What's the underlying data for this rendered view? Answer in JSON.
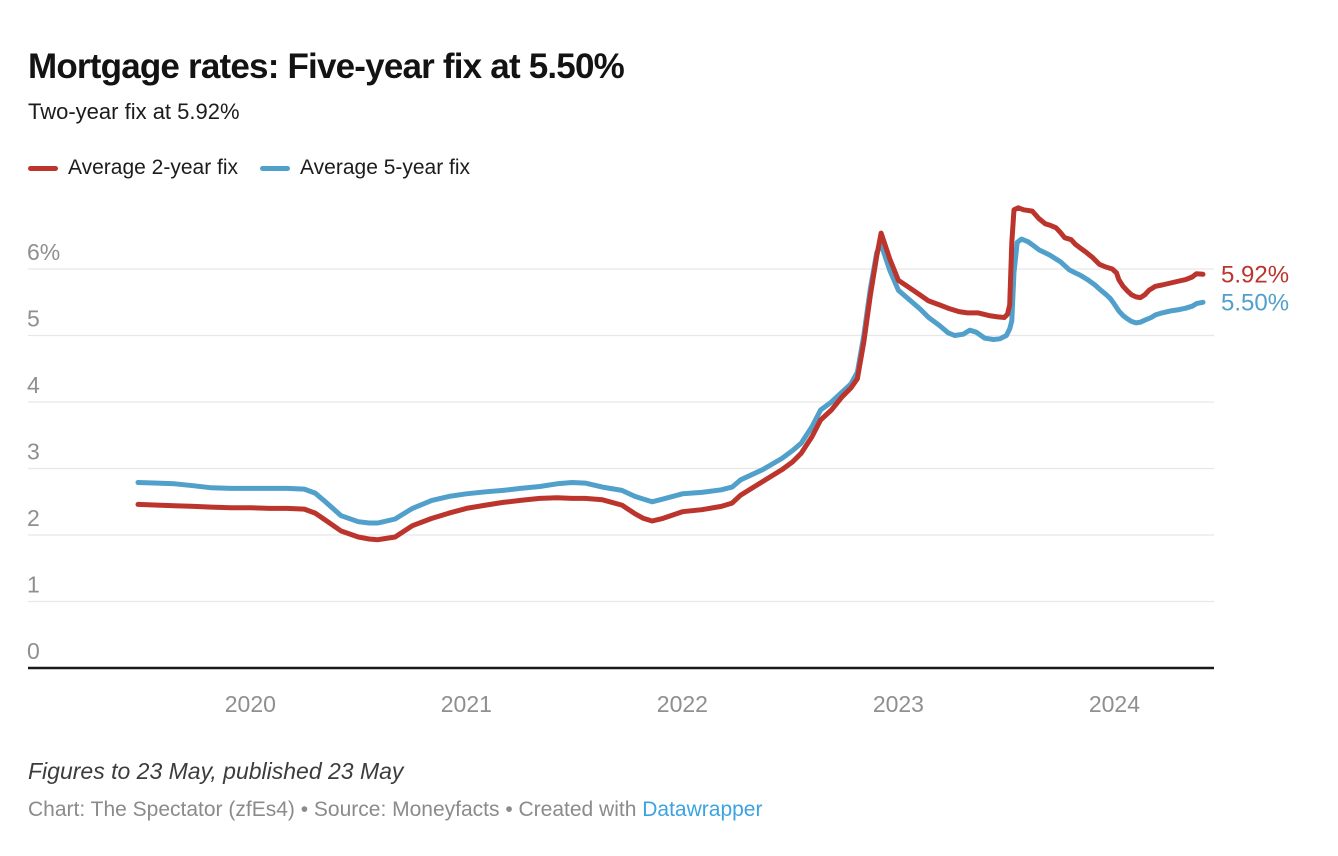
{
  "header": {
    "title": "Mortgage rates: Five-year fix at 5.50%",
    "subtitle": "Two-year fix at 5.92%"
  },
  "legend": {
    "items": [
      {
        "label": "Average 2-year fix",
        "color": "#bc352d"
      },
      {
        "label": "Average 5-year fix",
        "color": "#51a0cb"
      }
    ]
  },
  "chart_data": {
    "type": "line",
    "title": "Mortgage rates: Five-year fix at 5.50%",
    "subtitle": "Two-year fix at 5.92%",
    "legend_position": "top-left",
    "grid": true,
    "x_axis": {
      "unit": "year (fractional, Jul 2019 – 23 May 2024)",
      "range": [
        2019.48,
        2024.41
      ],
      "ticks": [
        2020,
        2021,
        2022,
        2023,
        2024
      ],
      "tick_labels": [
        "2020",
        "2021",
        "2022",
        "2023",
        "2024"
      ]
    },
    "y_axis": {
      "unit": "percent",
      "range": [
        0,
        7.0
      ],
      "ticks": [
        {
          "value": 6,
          "label": "6%"
        },
        {
          "value": 5,
          "label": "5"
        },
        {
          "value": 4,
          "label": "4"
        },
        {
          "value": 3,
          "label": "3"
        },
        {
          "value": 2,
          "label": "2"
        },
        {
          "value": 1,
          "label": "1"
        },
        {
          "value": 0,
          "label": "0"
        }
      ]
    },
    "series": [
      {
        "name": "Average 5-year fix",
        "color": "#51a0cb",
        "end_label": "5.50%",
        "end_value": 5.5,
        "points": [
          [
            2019.48,
            2.79
          ],
          [
            2019.57,
            2.78
          ],
          [
            2019.65,
            2.77
          ],
          [
            2019.74,
            2.74
          ],
          [
            2019.82,
            2.71
          ],
          [
            2019.91,
            2.7
          ],
          [
            2020.0,
            2.7
          ],
          [
            2020.09,
            2.7
          ],
          [
            2020.17,
            2.7
          ],
          [
            2020.25,
            2.69
          ],
          [
            2020.3,
            2.63
          ],
          [
            2020.34,
            2.52
          ],
          [
            2020.42,
            2.29
          ],
          [
            2020.5,
            2.2
          ],
          [
            2020.55,
            2.18
          ],
          [
            2020.59,
            2.18
          ],
          [
            2020.67,
            2.24
          ],
          [
            2020.75,
            2.4
          ],
          [
            2020.84,
            2.52
          ],
          [
            2020.92,
            2.58
          ],
          [
            2021.0,
            2.62
          ],
          [
            2021.09,
            2.65
          ],
          [
            2021.17,
            2.67
          ],
          [
            2021.25,
            2.7
          ],
          [
            2021.34,
            2.73
          ],
          [
            2021.42,
            2.77
          ],
          [
            2021.49,
            2.79
          ],
          [
            2021.55,
            2.78
          ],
          [
            2021.63,
            2.72
          ],
          [
            2021.72,
            2.67
          ],
          [
            2021.78,
            2.58
          ],
          [
            2021.82,
            2.54
          ],
          [
            2021.86,
            2.5
          ],
          [
            2021.91,
            2.54
          ],
          [
            2022.0,
            2.62
          ],
          [
            2022.09,
            2.64
          ],
          [
            2022.18,
            2.68
          ],
          [
            2022.23,
            2.72
          ],
          [
            2022.27,
            2.83
          ],
          [
            2022.37,
            2.98
          ],
          [
            2022.46,
            3.15
          ],
          [
            2022.51,
            3.27
          ],
          [
            2022.55,
            3.38
          ],
          [
            2022.6,
            3.63
          ],
          [
            2022.64,
            3.88
          ],
          [
            2022.69,
            4.0
          ],
          [
            2022.74,
            4.15
          ],
          [
            2022.78,
            4.27
          ],
          [
            2022.81,
            4.45
          ],
          [
            2022.84,
            5.0
          ],
          [
            2022.87,
            5.7
          ],
          [
            2022.9,
            6.25
          ],
          [
            2022.92,
            6.37
          ],
          [
            2022.96,
            5.98
          ],
          [
            2023.0,
            5.68
          ],
          [
            2023.05,
            5.54
          ],
          [
            2023.1,
            5.4
          ],
          [
            2023.14,
            5.27
          ],
          [
            2023.19,
            5.15
          ],
          [
            2023.23,
            5.04
          ],
          [
            2023.26,
            5.0
          ],
          [
            2023.3,
            5.02
          ],
          [
            2023.33,
            5.08
          ],
          [
            2023.36,
            5.05
          ],
          [
            2023.4,
            4.96
          ],
          [
            2023.44,
            4.94
          ],
          [
            2023.47,
            4.95
          ],
          [
            2023.5,
            5.0
          ],
          [
            2023.515,
            5.1
          ],
          [
            2023.525,
            5.22
          ],
          [
            2023.535,
            5.95
          ],
          [
            2023.55,
            6.4
          ],
          [
            2023.57,
            6.45
          ],
          [
            2023.6,
            6.41
          ],
          [
            2023.63,
            6.34
          ],
          [
            2023.65,
            6.29
          ],
          [
            2023.7,
            6.21
          ],
          [
            2023.75,
            6.11
          ],
          [
            2023.79,
            5.99
          ],
          [
            2023.82,
            5.94
          ],
          [
            2023.84,
            5.91
          ],
          [
            2023.88,
            5.83
          ],
          [
            2023.91,
            5.76
          ],
          [
            2023.93,
            5.7
          ],
          [
            2023.96,
            5.62
          ],
          [
            2023.98,
            5.56
          ],
          [
            2024.0,
            5.47
          ],
          [
            2024.02,
            5.37
          ],
          [
            2024.04,
            5.3
          ],
          [
            2024.06,
            5.25
          ],
          [
            2024.08,
            5.21
          ],
          [
            2024.1,
            5.19
          ],
          [
            2024.12,
            5.2
          ],
          [
            2024.14,
            5.23
          ],
          [
            2024.17,
            5.27
          ],
          [
            2024.19,
            5.31
          ],
          [
            2024.22,
            5.34
          ],
          [
            2024.26,
            5.37
          ],
          [
            2024.3,
            5.39
          ],
          [
            2024.33,
            5.41
          ],
          [
            2024.36,
            5.44
          ],
          [
            2024.38,
            5.48
          ],
          [
            2024.41,
            5.5
          ]
        ]
      },
      {
        "name": "Average 2-year fix",
        "color": "#bc352d",
        "end_label": "5.92%",
        "end_value": 5.92,
        "points": [
          [
            2019.48,
            2.46
          ],
          [
            2019.57,
            2.45
          ],
          [
            2019.65,
            2.44
          ],
          [
            2019.74,
            2.43
          ],
          [
            2019.82,
            2.42
          ],
          [
            2019.91,
            2.41
          ],
          [
            2020.0,
            2.41
          ],
          [
            2020.09,
            2.4
          ],
          [
            2020.17,
            2.4
          ],
          [
            2020.25,
            2.39
          ],
          [
            2020.3,
            2.33
          ],
          [
            2020.34,
            2.24
          ],
          [
            2020.42,
            2.06
          ],
          [
            2020.5,
            1.97
          ],
          [
            2020.55,
            1.94
          ],
          [
            2020.59,
            1.93
          ],
          [
            2020.67,
            1.97
          ],
          [
            2020.75,
            2.14
          ],
          [
            2020.84,
            2.25
          ],
          [
            2020.92,
            2.33
          ],
          [
            2021.0,
            2.4
          ],
          [
            2021.09,
            2.45
          ],
          [
            2021.17,
            2.49
          ],
          [
            2021.25,
            2.52
          ],
          [
            2021.34,
            2.55
          ],
          [
            2021.42,
            2.56
          ],
          [
            2021.49,
            2.55
          ],
          [
            2021.55,
            2.55
          ],
          [
            2021.63,
            2.53
          ],
          [
            2021.72,
            2.45
          ],
          [
            2021.78,
            2.32
          ],
          [
            2021.82,
            2.25
          ],
          [
            2021.86,
            2.21
          ],
          [
            2021.91,
            2.25
          ],
          [
            2022.0,
            2.35
          ],
          [
            2022.09,
            2.38
          ],
          [
            2022.18,
            2.43
          ],
          [
            2022.23,
            2.48
          ],
          [
            2022.27,
            2.6
          ],
          [
            2022.37,
            2.8
          ],
          [
            2022.46,
            2.98
          ],
          [
            2022.51,
            3.1
          ],
          [
            2022.55,
            3.23
          ],
          [
            2022.6,
            3.48
          ],
          [
            2022.64,
            3.73
          ],
          [
            2022.69,
            3.88
          ],
          [
            2022.74,
            4.08
          ],
          [
            2022.78,
            4.21
          ],
          [
            2022.81,
            4.35
          ],
          [
            2022.84,
            4.9
          ],
          [
            2022.87,
            5.6
          ],
          [
            2022.9,
            6.2
          ],
          [
            2022.92,
            6.54
          ],
          [
            2022.96,
            6.15
          ],
          [
            2023.0,
            5.83
          ],
          [
            2023.05,
            5.72
          ],
          [
            2023.1,
            5.61
          ],
          [
            2023.14,
            5.52
          ],
          [
            2023.19,
            5.46
          ],
          [
            2023.23,
            5.41
          ],
          [
            2023.28,
            5.36
          ],
          [
            2023.32,
            5.34
          ],
          [
            2023.37,
            5.34
          ],
          [
            2023.42,
            5.3
          ],
          [
            2023.46,
            5.28
          ],
          [
            2023.49,
            5.27
          ],
          [
            2023.505,
            5.32
          ],
          [
            2023.515,
            5.46
          ],
          [
            2023.525,
            6.4
          ],
          [
            2023.535,
            6.89
          ],
          [
            2023.555,
            6.92
          ],
          [
            2023.58,
            6.89
          ],
          [
            2023.62,
            6.87
          ],
          [
            2023.65,
            6.76
          ],
          [
            2023.68,
            6.68
          ],
          [
            2023.7,
            6.66
          ],
          [
            2023.73,
            6.62
          ],
          [
            2023.75,
            6.55
          ],
          [
            2023.77,
            6.47
          ],
          [
            2023.8,
            6.44
          ],
          [
            2023.82,
            6.37
          ],
          [
            2023.84,
            6.32
          ],
          [
            2023.87,
            6.25
          ],
          [
            2023.9,
            6.17
          ],
          [
            2023.93,
            6.07
          ],
          [
            2023.96,
            6.03
          ],
          [
            2023.99,
            6.0
          ],
          [
            2024.01,
            5.94
          ],
          [
            2024.02,
            5.84
          ],
          [
            2024.04,
            5.74
          ],
          [
            2024.06,
            5.67
          ],
          [
            2024.08,
            5.61
          ],
          [
            2024.1,
            5.58
          ],
          [
            2024.12,
            5.57
          ],
          [
            2024.14,
            5.61
          ],
          [
            2024.16,
            5.68
          ],
          [
            2024.19,
            5.74
          ],
          [
            2024.22,
            5.76
          ],
          [
            2024.26,
            5.79
          ],
          [
            2024.3,
            5.82
          ],
          [
            2024.33,
            5.84
          ],
          [
            2024.36,
            5.88
          ],
          [
            2024.38,
            5.93
          ],
          [
            2024.41,
            5.92
          ]
        ]
      }
    ]
  },
  "footer": {
    "note": "Figures to 23 May, published 23 May",
    "byline_prefix": "Chart: The Spectator (zfEs4) • Source: Moneyfacts • Created with ",
    "link_label": "Datawrapper"
  }
}
